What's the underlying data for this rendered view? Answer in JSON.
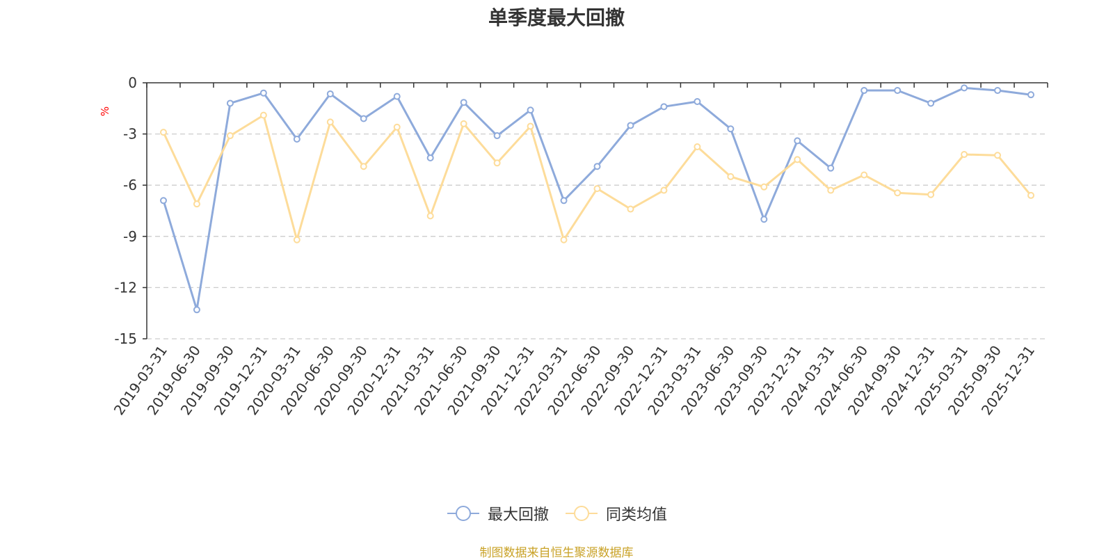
{
  "title": "单季度最大回撤",
  "source_note": "制图数据来自恒生聚源数据库",
  "chart_data": {
    "type": "line",
    "title": "单季度最大回撤",
    "ylabel": "%",
    "ylim": [
      -15,
      0
    ],
    "yticks": [
      0,
      -3,
      -6,
      -9,
      -12,
      -15
    ],
    "grid": true,
    "legend_position": "bottom-center",
    "categories": [
      "2019-03-31",
      "2019-06-30",
      "2019-09-30",
      "2019-12-31",
      "2020-03-31",
      "2020-06-30",
      "2020-09-30",
      "2020-12-31",
      "2021-03-31",
      "2021-06-30",
      "2021-09-30",
      "2021-12-31",
      "2022-03-31",
      "2022-06-30",
      "2022-09-30",
      "2022-12-31",
      "2023-03-31",
      "2023-06-30",
      "2023-09-30",
      "2023-12-31",
      "2024-03-31",
      "2024-06-30",
      "2024-09-30",
      "2024-12-31",
      "2025-03-31",
      "2025-09-30",
      "2025-12-31"
    ],
    "series": [
      {
        "name": "最大回撤",
        "color": "#8eaadb",
        "values": [
          -6.9,
          -13.3,
          -1.2,
          -0.6,
          -3.3,
          -0.65,
          -2.1,
          -0.8,
          -4.4,
          -1.15,
          -3.1,
          -1.6,
          -6.9,
          -4.9,
          -2.5,
          -1.4,
          -1.1,
          -2.7,
          -8.0,
          -3.4,
          -5.0,
          -0.45,
          -0.45,
          -1.2,
          -0.3,
          -0.45,
          -0.7
        ]
      },
      {
        "name": "同类均值",
        "color": "#fddc9a",
        "values": [
          -2.9,
          -7.1,
          -3.1,
          -1.9,
          -9.2,
          -2.3,
          -4.9,
          -2.6,
          -7.8,
          -2.4,
          -4.7,
          -2.55,
          -9.2,
          -6.2,
          -7.4,
          -6.3,
          -3.75,
          -5.5,
          -6.1,
          -4.5,
          -6.3,
          -5.4,
          -6.45,
          -6.55,
          -4.2,
          -4.25,
          -6.6
        ]
      }
    ]
  }
}
